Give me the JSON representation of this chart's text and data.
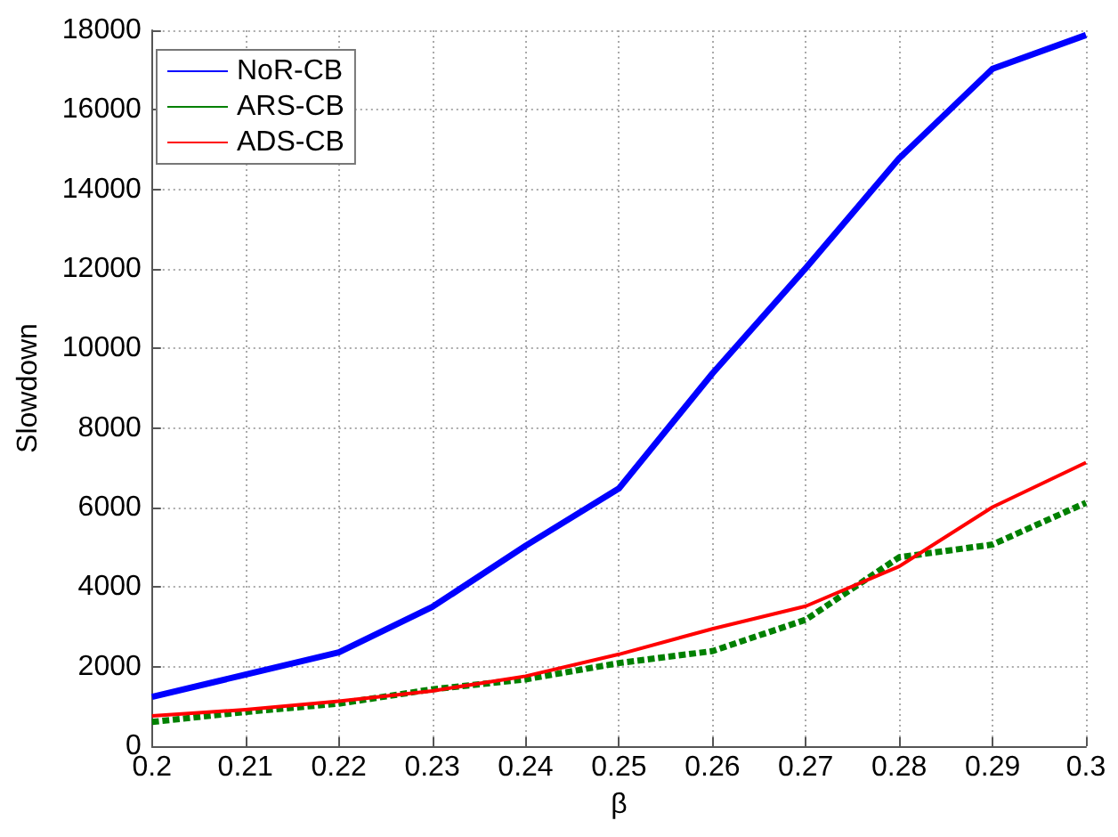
{
  "chart_data": {
    "type": "line",
    "xlabel": "β",
    "ylabel": "Slowdown",
    "x": [
      0.2,
      0.21,
      0.22,
      0.23,
      0.24,
      0.25,
      0.26,
      0.27,
      0.28,
      0.29,
      0.3
    ],
    "series": [
      {
        "name": "NoR-CB",
        "color": "#0000ff",
        "values": [
          1240,
          1800,
          2360,
          3500,
          5040,
          6480,
          9370,
          12020,
          14780,
          17030,
          17880
        ]
      },
      {
        "name": "ARS-CB",
        "color": "#008000",
        "line_style": "dashed",
        "values": [
          610,
          860,
          1070,
          1430,
          1680,
          2090,
          2390,
          3180,
          4750,
          5070,
          6120
        ]
      },
      {
        "name": "ADS-CB",
        "color": "#ff0000",
        "values": [
          760,
          920,
          1130,
          1390,
          1760,
          2310,
          2950,
          3520,
          4520,
          6010,
          7130
        ]
      }
    ],
    "xlim": [
      0.2,
      0.3
    ],
    "xticks": [
      0.2,
      0.21,
      0.22,
      0.23,
      0.24,
      0.25,
      0.26,
      0.27,
      0.28,
      0.29,
      0.3
    ],
    "ylim": [
      0,
      18000
    ],
    "yticks": [
      0,
      2000,
      4000,
      6000,
      8000,
      10000,
      12000,
      14000,
      16000,
      18000
    ],
    "grid": true,
    "legend": "top left",
    "marker": "none",
    "line_style": "solid"
  }
}
